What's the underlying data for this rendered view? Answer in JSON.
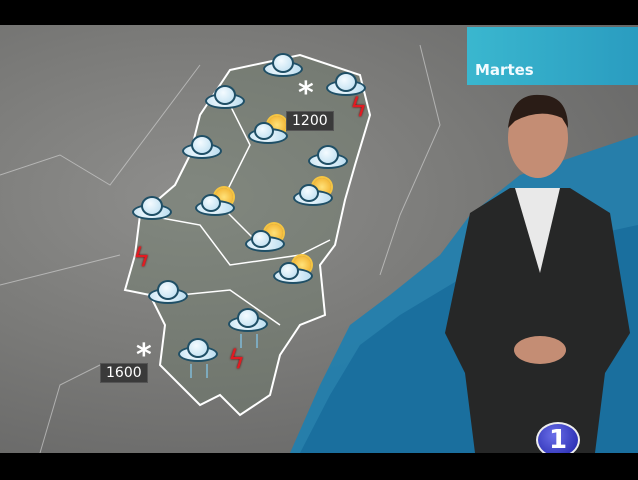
{
  "overlay": {
    "day_label": "Martes",
    "channel_logo": "1"
  },
  "map": {
    "region_outline_color": "#ffffff",
    "altitude_labels": {
      "north": "1200",
      "southwest": "1600"
    },
    "icons": [
      "cloud",
      "cloud",
      "cloud",
      "cloud",
      "cloud",
      "cloud",
      "cloud",
      "sun-cloud",
      "sun-cloud",
      "sun-cloud",
      "sun-cloud",
      "sun-cloud",
      "rain-cloud",
      "rain-cloud",
      "lightning",
      "lightning",
      "lightning",
      "snowflake",
      "snowflake"
    ]
  },
  "colors": {
    "sea": "#1e7fb0",
    "land": "#7d7d7b",
    "day_banner": "#34b0cb",
    "logo": "#2a2fb8"
  }
}
